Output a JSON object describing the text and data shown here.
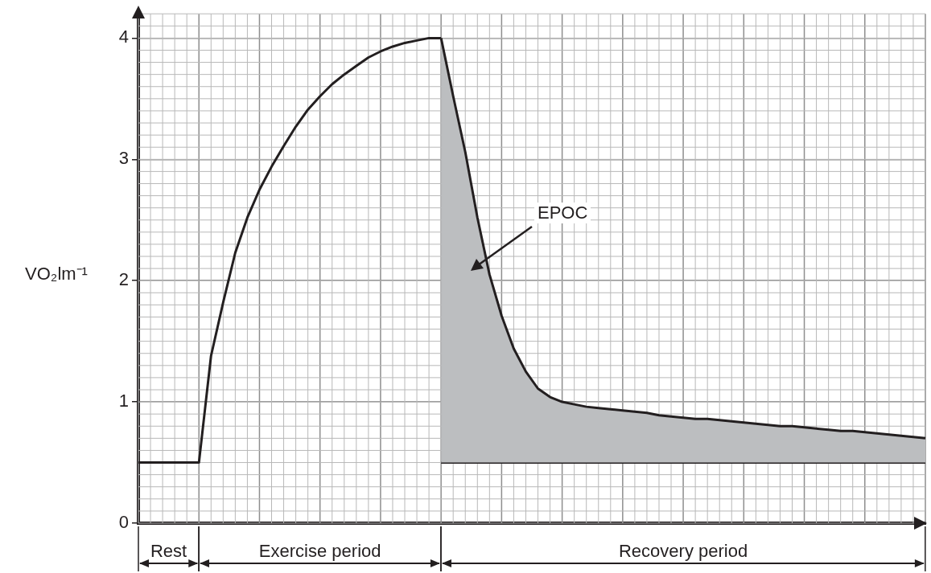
{
  "chart_data": {
    "type": "line",
    "ylabel": "VO₂lm⁻¹",
    "ylim": [
      0,
      4.2
    ],
    "yticks": [
      0,
      1,
      2,
      3,
      4
    ],
    "tick_labels": "y",
    "grid": true,
    "legend": false,
    "marker": "none",
    "line_style": "solid",
    "categories": [
      null,
      null,
      null,
      null,
      null,
      null,
      null,
      null,
      null,
      null,
      null,
      null,
      null,
      null,
      null,
      null,
      null,
      null,
      null,
      null,
      null,
      null,
      null,
      null,
      null,
      null,
      null,
      null,
      null,
      null,
      null,
      null,
      null,
      null,
      null,
      null,
      null,
      null,
      null,
      null,
      null,
      null,
      null,
      null,
      null,
      null,
      null,
      null,
      null,
      null,
      null,
      null,
      null,
      null,
      null,
      null,
      null,
      null,
      null,
      null,
      null,
      null,
      null,
      null,
      null,
      null
    ],
    "series": [
      {
        "color": "#231f20",
        "values": [
          0.5,
          0.5,
          0.5,
          0.5,
          0.5,
          0.5,
          1.38,
          1.82,
          2.23,
          2.52,
          2.75,
          2.94,
          3.11,
          3.27,
          3.41,
          3.52,
          3.62,
          3.7,
          3.77,
          3.84,
          3.89,
          3.93,
          3.96,
          3.98,
          4,
          4,
          null,
          null,
          null,
          null,
          null,
          null,
          null,
          null,
          null,
          null,
          null,
          null,
          null,
          null,
          null,
          null,
          null,
          null,
          null,
          null,
          null,
          null,
          null,
          null,
          null,
          null,
          null,
          null,
          null,
          null,
          null,
          null,
          null,
          null,
          null,
          null,
          null,
          null,
          null,
          null
        ]
      },
      {
        "type": "area",
        "color": "#bcbec0",
        "values": [
          null,
          null,
          null,
          null,
          null,
          null,
          null,
          null,
          null,
          null,
          null,
          null,
          null,
          null,
          null,
          null,
          null,
          null,
          null,
          null,
          null,
          null,
          null,
          null,
          null,
          4,
          3.52,
          3.06,
          2.52,
          2.05,
          1.71,
          1.44,
          1.25,
          1.11,
          1.04,
          1,
          0.98,
          0.96,
          0.95,
          0.94,
          0.93,
          0.92,
          0.91,
          0.89,
          0.88,
          0.87,
          0.86,
          0.86,
          0.85,
          0.84,
          0.83,
          0.82,
          0.81,
          0.8,
          0.8,
          0.79,
          0.78,
          0.77,
          0.76,
          0.76,
          0.75,
          0.74,
          0.73,
          0.72,
          0.71,
          0.7
        ]
      },
      {
        "color": "#231f20",
        "values": [
          null,
          null,
          null,
          null,
          null,
          null,
          null,
          null,
          null,
          null,
          null,
          null,
          null,
          null,
          null,
          null,
          null,
          null,
          null,
          null,
          null,
          null,
          null,
          null,
          null,
          0.5,
          0.5,
          0.5,
          0.5,
          0.5,
          0.5,
          0.5,
          0.5,
          0.5,
          0.5,
          0.5,
          0.5,
          0.5,
          0.5,
          0.5,
          0.5,
          0.5,
          0.5,
          0.5,
          0.5,
          0.5,
          0.5,
          0.5,
          0.5,
          0.5,
          0.5,
          0.5,
          0.5,
          0.5,
          0.5,
          0.5,
          0.5,
          0.5,
          0.5,
          0.5,
          0.5,
          0.5,
          0.5,
          0.5,
          0.5,
          0.5
        ]
      }
    ],
    "annotations": [
      "Rest",
      "Exercise period",
      "Recovery period",
      "EPOC"
    ]
  }
}
